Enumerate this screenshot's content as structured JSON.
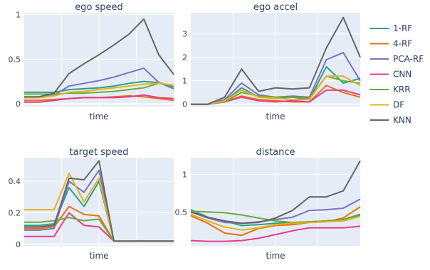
{
  "legend": {
    "entries": [
      {
        "name": "1-RF",
        "color": "#2ca089"
      },
      {
        "name": "4-RF",
        "color": "#e8700d"
      },
      {
        "name": "PCA-RF",
        "color": "#7b73c4"
      },
      {
        "name": "CNN",
        "color": "#e83c8c"
      },
      {
        "name": "KRR",
        "color": "#6aab3a"
      },
      {
        "name": "DF",
        "color": "#e6b020"
      },
      {
        "name": "KNN",
        "color": "#666666"
      }
    ]
  },
  "chart_data": [
    {
      "type": "line",
      "title": "ego speed",
      "xlabel": "time",
      "ylabel": "",
      "ylim": [
        -0.03,
        1.02
      ],
      "yticks": [
        0,
        0.5,
        1
      ],
      "ytick_labels": [
        "0",
        "0.5",
        "1"
      ],
      "x": [
        0,
        0.1,
        0.2,
        0.3,
        0.4,
        0.5,
        0.6,
        0.7,
        0.8,
        0.9,
        1.0
      ],
      "series": [
        {
          "name": "1-RF",
          "values": [
            0.13,
            0.13,
            0.13,
            0.16,
            0.17,
            0.18,
            0.2,
            0.23,
            0.25,
            0.24,
            0.17
          ]
        },
        {
          "name": "4-RF",
          "values": [
            0.04,
            0.04,
            0.05,
            0.06,
            0.07,
            0.07,
            0.08,
            0.09,
            0.08,
            0.06,
            0.04
          ]
        },
        {
          "name": "PCA-RF",
          "values": [
            0.07,
            0.07,
            0.1,
            0.2,
            0.23,
            0.26,
            0.3,
            0.35,
            0.4,
            0.24,
            0.19
          ]
        },
        {
          "name": "CNN",
          "values": [
            0.02,
            0.02,
            0.04,
            0.06,
            0.07,
            0.07,
            0.07,
            0.08,
            0.1,
            0.07,
            0.06
          ]
        },
        {
          "name": "KRR",
          "values": [
            0.11,
            0.11,
            0.11,
            0.12,
            0.12,
            0.13,
            0.14,
            0.16,
            0.18,
            0.23,
            0.2
          ]
        },
        {
          "name": "DF",
          "values": [
            0.07,
            0.07,
            0.09,
            0.13,
            0.14,
            0.16,
            0.18,
            0.2,
            0.22,
            0.23,
            0.21
          ]
        },
        {
          "name": "KNN",
          "values": [
            0.08,
            0.08,
            0.12,
            0.34,
            0.45,
            0.55,
            0.66,
            0.78,
            0.95,
            0.55,
            0.33
          ]
        }
      ]
    },
    {
      "type": "line",
      "title": "ego accel",
      "xlabel": "time",
      "ylabel": "",
      "ylim": [
        -0.1,
        3.9
      ],
      "yticks": [
        0,
        1,
        2,
        3
      ],
      "ytick_labels": [
        "0",
        "1",
        "2",
        "3"
      ],
      "x": [
        0,
        0.1,
        0.2,
        0.3,
        0.4,
        0.5,
        0.6,
        0.7,
        0.8,
        0.9,
        1.0
      ],
      "series": [
        {
          "name": "1-RF",
          "values": [
            0.0,
            0.0,
            0.15,
            0.7,
            0.3,
            0.25,
            0.3,
            0.2,
            1.6,
            0.9,
            1.1
          ]
        },
        {
          "name": "4-RF",
          "values": [
            0.0,
            0.0,
            0.1,
            0.35,
            0.2,
            0.15,
            0.1,
            0.1,
            0.8,
            0.5,
            0.3
          ]
        },
        {
          "name": "PCA-RF",
          "values": [
            0.0,
            0.0,
            0.2,
            0.9,
            0.4,
            0.3,
            0.35,
            0.3,
            1.9,
            2.2,
            1.0
          ]
        },
        {
          "name": "CNN",
          "values": [
            0.0,
            0.0,
            0.1,
            0.3,
            0.15,
            0.1,
            0.15,
            0.1,
            0.6,
            0.6,
            0.4
          ]
        },
        {
          "name": "KRR",
          "values": [
            0.0,
            0.0,
            0.1,
            0.5,
            0.35,
            0.3,
            0.3,
            0.25,
            1.2,
            1.0,
            0.9
          ]
        },
        {
          "name": "DF",
          "values": [
            0.0,
            0.0,
            0.15,
            0.6,
            0.3,
            0.25,
            0.2,
            0.2,
            1.2,
            1.2,
            0.8
          ]
        },
        {
          "name": "KNN",
          "values": [
            0.0,
            0.0,
            0.3,
            1.5,
            0.55,
            0.7,
            0.65,
            0.7,
            2.4,
            3.7,
            2.0
          ]
        }
      ]
    },
    {
      "type": "line",
      "title": "target speed",
      "xlabel": "time",
      "ylabel": "",
      "ylim": [
        -0.01,
        0.55
      ],
      "yticks": [
        0,
        0.2,
        0.4
      ],
      "ytick_labels": [
        "0",
        "0.2",
        "0.4"
      ],
      "x": [
        0,
        0.1,
        0.2,
        0.3,
        0.4,
        0.5,
        0.6,
        0.7,
        0.8,
        0.9,
        1.0
      ],
      "series": [
        {
          "name": "1-RF",
          "values": [
            0.12,
            0.12,
            0.13,
            0.36,
            0.24,
            0.4,
            0.02,
            0.02,
            0.02,
            0.02,
            0.02
          ]
        },
        {
          "name": "4-RF",
          "values": [
            0.1,
            0.1,
            0.11,
            0.24,
            0.19,
            0.18,
            0.02,
            0.02,
            0.02,
            0.02,
            0.02
          ]
        },
        {
          "name": "PCA-RF",
          "values": [
            0.09,
            0.09,
            0.1,
            0.4,
            0.33,
            0.47,
            0.02,
            0.02,
            0.02,
            0.02,
            0.02
          ]
        },
        {
          "name": "CNN",
          "values": [
            0.05,
            0.05,
            0.05,
            0.2,
            0.12,
            0.11,
            0.02,
            0.02,
            0.02,
            0.02,
            0.02
          ]
        },
        {
          "name": "KRR",
          "values": [
            0.14,
            0.14,
            0.15,
            0.17,
            0.15,
            0.16,
            0.02,
            0.02,
            0.02,
            0.02,
            0.02
          ]
        },
        {
          "name": "DF",
          "values": [
            0.22,
            0.22,
            0.22,
            0.45,
            0.27,
            0.42,
            0.02,
            0.02,
            0.02,
            0.02,
            0.02
          ]
        },
        {
          "name": "KNN",
          "values": [
            0.11,
            0.11,
            0.12,
            0.42,
            0.41,
            0.53,
            0.02,
            0.02,
            0.02,
            0.02,
            0.02
          ]
        }
      ]
    },
    {
      "type": "line",
      "title": "distance",
      "xlabel": "time",
      "ylabel": "",
      "ylim": [
        0.05,
        1.22
      ],
      "yticks": [
        0.5,
        1
      ],
      "ytick_labels": [
        "0.5",
        "1"
      ],
      "x": [
        0,
        0.1,
        0.2,
        0.3,
        0.4,
        0.5,
        0.6,
        0.7,
        0.8,
        0.9,
        1.0
      ],
      "series": [
        {
          "name": "1-RF",
          "values": [
            0.53,
            0.43,
            0.38,
            0.32,
            0.33,
            0.35,
            0.36,
            0.37,
            0.38,
            0.4,
            0.46
          ]
        },
        {
          "name": "4-RF",
          "values": [
            0.45,
            0.35,
            0.22,
            0.19,
            0.28,
            0.32,
            0.33,
            0.36,
            0.37,
            0.42,
            0.57
          ]
        },
        {
          "name": "PCA-RF",
          "values": [
            0.5,
            0.42,
            0.36,
            0.35,
            0.37,
            0.4,
            0.43,
            0.52,
            0.53,
            0.55,
            0.67
          ]
        },
        {
          "name": "CNN",
          "values": [
            0.12,
            0.11,
            0.11,
            0.12,
            0.15,
            0.2,
            0.25,
            0.29,
            0.29,
            0.29,
            0.31
          ]
        },
        {
          "name": "KRR",
          "values": [
            0.51,
            0.5,
            0.49,
            0.46,
            0.42,
            0.38,
            0.36,
            0.37,
            0.38,
            0.4,
            0.47
          ]
        },
        {
          "name": "DF",
          "values": [
            0.47,
            0.38,
            0.3,
            0.26,
            0.29,
            0.33,
            0.35,
            0.36,
            0.37,
            0.38,
            0.44
          ]
        },
        {
          "name": "KNN",
          "values": [
            0.5,
            0.43,
            0.38,
            0.35,
            0.36,
            0.42,
            0.52,
            0.7,
            0.7,
            0.78,
            1.18
          ]
        }
      ]
    }
  ]
}
